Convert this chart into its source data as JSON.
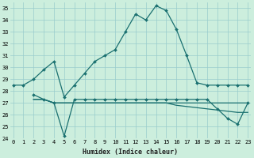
{
  "xlabel": "Humidex (Indice chaleur)",
  "background_color": "#cceedd",
  "line_color": "#1a7070",
  "grid_color": "#99cccc",
  "ylim": [
    24,
    35.5
  ],
  "xlim": [
    -0.3,
    23.3
  ],
  "yticks": [
    24,
    25,
    26,
    27,
    28,
    29,
    30,
    31,
    32,
    33,
    34,
    35
  ],
  "xticks": [
    0,
    1,
    2,
    3,
    4,
    5,
    6,
    7,
    8,
    9,
    10,
    11,
    12,
    13,
    14,
    15,
    16,
    17,
    18,
    19,
    20,
    21,
    22,
    23
  ],
  "series": [
    {
      "x": [
        0,
        1,
        2,
        3,
        4,
        5,
        6,
        7,
        8,
        9,
        10,
        11,
        12,
        13,
        14,
        15,
        16,
        17,
        18,
        19,
        20,
        21,
        22,
        23
      ],
      "y": [
        28.5,
        28.5,
        29.0,
        29.8,
        30.5,
        27.5,
        28.5,
        29.5,
        30.5,
        31.0,
        31.5,
        33.0,
        34.5,
        34.0,
        35.2,
        34.8,
        33.2,
        31.0,
        28.7,
        28.5,
        28.5,
        28.5,
        28.5,
        28.5
      ],
      "marker": true
    },
    {
      "x": [
        2,
        3,
        4,
        5,
        6,
        7,
        8,
        9,
        10,
        11,
        12,
        13,
        14,
        15,
        16,
        17,
        18,
        19,
        20,
        21,
        22,
        23
      ],
      "y": [
        27.7,
        27.3,
        27.0,
        24.2,
        27.3,
        27.3,
        27.3,
        27.3,
        27.3,
        27.3,
        27.3,
        27.3,
        27.3,
        27.3,
        27.3,
        27.3,
        27.3,
        27.3,
        26.5,
        25.7,
        25.2,
        27.0
      ],
      "marker": true
    },
    {
      "x": [
        2,
        3,
        4,
        5,
        6,
        7,
        8,
        9,
        10,
        11,
        12,
        13,
        14,
        15,
        16,
        17,
        18,
        19,
        20,
        21,
        22,
        23
      ],
      "y": [
        27.3,
        27.3,
        27.0,
        27.0,
        27.0,
        27.0,
        27.0,
        27.0,
        27.0,
        27.0,
        27.0,
        27.0,
        27.0,
        27.0,
        27.0,
        27.0,
        27.0,
        27.0,
        27.0,
        27.0,
        27.0,
        27.0
      ],
      "marker": false
    },
    {
      "x": [
        2,
        3,
        4,
        5,
        6,
        7,
        8,
        9,
        10,
        11,
        12,
        13,
        14,
        15,
        16,
        17,
        18,
        19,
        20,
        21,
        22,
        23
      ],
      "y": [
        27.3,
        27.3,
        27.0,
        27.0,
        27.0,
        27.0,
        27.0,
        27.0,
        27.0,
        27.0,
        27.0,
        27.0,
        27.0,
        27.0,
        26.8,
        26.7,
        26.6,
        26.5,
        26.4,
        26.3,
        26.2,
        26.2
      ],
      "marker": false
    }
  ]
}
